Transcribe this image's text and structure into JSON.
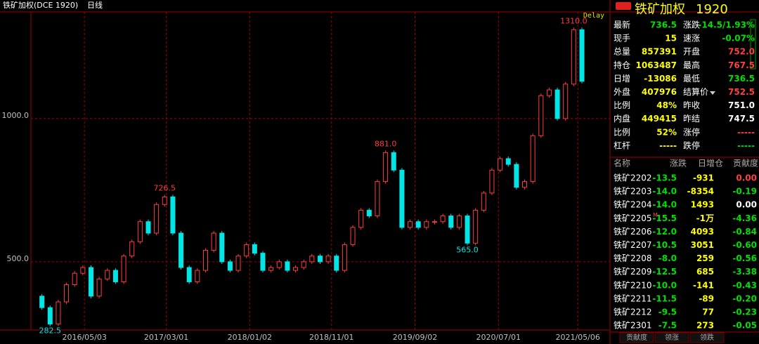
{
  "header": {
    "title": "铁矿加权(DCE 1920)",
    "period": "日线",
    "delay": "Delay"
  },
  "chart_data": {
    "type": "candlestick",
    "values": [
      380,
      340,
      282.5,
      360,
      420,
      460,
      480,
      380,
      440,
      470,
      430,
      520,
      570,
      640,
      600,
      700,
      726.5,
      600,
      480,
      430,
      470,
      540,
      600,
      500,
      470,
      520,
      560,
      530,
      470,
      480,
      500,
      470,
      480,
      500,
      520,
      500,
      520,
      470,
      560,
      620,
      680,
      660,
      780,
      881,
      820,
      620,
      640,
      620,
      640,
      640,
      660,
      620,
      660,
      565,
      680,
      740,
      820,
      860,
      840,
      760,
      780,
      940,
      1080,
      1100,
      1000,
      1120,
      1310,
      1130
    ],
    "value_labels": [
      null,
      null,
      "282.5",
      null,
      null,
      null,
      null,
      null,
      null,
      null,
      null,
      null,
      null,
      null,
      null,
      null,
      "726.5",
      null,
      null,
      null,
      null,
      null,
      null,
      null,
      null,
      null,
      null,
      null,
      null,
      null,
      null,
      null,
      null,
      null,
      null,
      null,
      null,
      null,
      null,
      null,
      null,
      null,
      null,
      "881.0",
      null,
      null,
      null,
      null,
      null,
      null,
      null,
      null,
      null,
      "565.0",
      null,
      null,
      null,
      null,
      null,
      null,
      null,
      null,
      null,
      null,
      null,
      null,
      "1310.0",
      null
    ],
    "up_color": "#ff3c3c",
    "down_color": "#00e6e6",
    "xlim": [
      0,
      67
    ],
    "xticks": [
      {
        "value": 6.2,
        "label": "2016/05/03"
      },
      {
        "value": 16.2,
        "label": "2017/03/01"
      },
      {
        "value": 26.4,
        "label": "2018/01/02"
      },
      {
        "value": 36.4,
        "label": "2018/11/01"
      },
      {
        "value": 46.6,
        "label": "2019/09/02"
      },
      {
        "value": 56.8,
        "label": "2020/07/01"
      },
      {
        "value": 66.5,
        "label": "2021/05/06"
      }
    ],
    "ylim": [
      262,
      1372
    ],
    "yticks": [
      {
        "value": 500,
        "label": "500.0"
      },
      {
        "value": 1000,
        "label": "1000.0"
      }
    ],
    "grid": true
  },
  "quote": {
    "name": "铁矿加权",
    "code": "1920",
    "rows": [
      [
        {
          "label": "最新",
          "value": "736.5",
          "color": "#00e000"
        },
        {
          "label": "涨跌",
          "value": "-14.5/1.93%",
          "color": "#00e000"
        }
      ],
      [
        {
          "label": "现手",
          "value": "15",
          "color": "#ffff00"
        },
        {
          "label": "速涨",
          "value": "-0.07%",
          "color": "#00e000"
        }
      ],
      [
        {
          "label": "总量",
          "value": "857391",
          "color": "#ffff00"
        },
        {
          "label": "开盘",
          "value": "752.0",
          "color": "#ff4040"
        }
      ],
      [
        {
          "label": "持仓",
          "value": "1063487",
          "color": "#ffff00"
        },
        {
          "label": "最高",
          "value": "767.5",
          "color": "#ff4040"
        }
      ],
      [
        {
          "label": "日增",
          "value": "-13086",
          "color": "#ffff00"
        },
        {
          "label": "最低",
          "value": "736.5",
          "color": "#00e000"
        }
      ],
      [
        {
          "label": "外盘",
          "value": "407976",
          "color": "#ffff00"
        },
        {
          "label": "结算价",
          "value": "752.5",
          "color": "#ff4040"
        }
      ],
      [
        {
          "label": "比例",
          "value": "48%",
          "color": "#ffff00"
        },
        {
          "label": "昨收",
          "value": "751.0",
          "color": "#ffffff"
        }
      ],
      [
        {
          "label": "内盘",
          "value": "449415",
          "color": "#ffff00"
        },
        {
          "label": "昨结",
          "value": "747.5",
          "color": "#ffffff"
        }
      ],
      [
        {
          "label": "比例",
          "value": "52%",
          "color": "#ffff00"
        },
        {
          "label": "涨停",
          "value": "-----",
          "color": "#ff4040"
        }
      ],
      [
        {
          "label": "杠杆",
          "value": "-----",
          "color": "#ffff00"
        },
        {
          "label": "跌停",
          "value": "-----",
          "color": "#00e000"
        }
      ]
    ]
  },
  "constituents": {
    "columns": [
      "名称",
      "涨跌",
      "日增仓",
      "贡献度"
    ],
    "rows": [
      {
        "name": "铁矿2202",
        "change": "-13.5",
        "oi": "-931",
        "contribution": "0.00",
        "color": "#ff4040"
      },
      {
        "name": "铁矿2203",
        "change": "-14.0",
        "oi": "-8354",
        "contribution": "-0.19",
        "color": "#00e000"
      },
      {
        "name": "铁矿2204",
        "change": "-14.0",
        "oi": "1493",
        "contribution": "0.00",
        "color": "#ffffff"
      },
      {
        "name": "铁矿2205",
        "mark": "M",
        "change": "-15.5",
        "oi": "-1万",
        "contribution": "-4.36",
        "color": "#00e000"
      },
      {
        "name": "铁矿2206",
        "change": "-12.0",
        "oi": "4093",
        "contribution": "-0.84",
        "color": "#00e000"
      },
      {
        "name": "铁矿2207",
        "change": "-10.5",
        "oi": "3051",
        "contribution": "-0.60",
        "color": "#00e000"
      },
      {
        "name": "铁矿2208",
        "change": "-8.0",
        "oi": "259",
        "contribution": "-0.56",
        "color": "#00e000"
      },
      {
        "name": "铁矿2209",
        "change": "-12.5",
        "oi": "685",
        "contribution": "-3.38",
        "color": "#00e000"
      },
      {
        "name": "铁矿2210",
        "change": "-10.0",
        "oi": "-141",
        "contribution": "-0.43",
        "color": "#00e000"
      },
      {
        "name": "铁矿2211",
        "change": "-11.5",
        "oi": "-89",
        "contribution": "-0.20",
        "color": "#00e000"
      },
      {
        "name": "铁矿2212",
        "change": "-9.5",
        "oi": "77",
        "contribution": "-0.23",
        "color": "#00e000"
      },
      {
        "name": "铁矿2301",
        "change": "-7.5",
        "oi": "273",
        "contribution": "-0.05",
        "color": "#00e000"
      }
    ]
  },
  "tabs": [
    "贡献度",
    "领涨",
    "领跌"
  ]
}
